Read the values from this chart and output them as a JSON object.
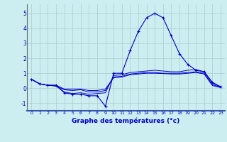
{
  "xlabel": "Graphe des températures (°c)",
  "bg_color": "#cceef0",
  "grid_color": "#aacccc",
  "line_color": "#0000cc",
  "xlim": [
    -0.5,
    23.5
  ],
  "ylim": [
    -1.5,
    5.6
  ],
  "yticks": [
    -1,
    0,
    1,
    2,
    3,
    4,
    5
  ],
  "xticks": [
    0,
    1,
    2,
    3,
    4,
    5,
    6,
    7,
    8,
    9,
    10,
    11,
    12,
    13,
    14,
    15,
    16,
    17,
    18,
    19,
    20,
    21,
    22,
    23
  ],
  "series": [
    {
      "x": [
        0,
        1,
        2,
        3,
        4,
        5,
        6,
        7,
        8,
        9,
        10,
        11,
        12,
        13,
        14,
        15,
        16,
        17,
        18,
        19,
        20,
        21,
        22,
        23
      ],
      "y": [
        0.6,
        0.3,
        0.2,
        0.2,
        -0.3,
        -0.4,
        -0.4,
        -0.5,
        -0.5,
        -1.2,
        1.0,
        1.0,
        2.5,
        3.8,
        4.7,
        5.0,
        4.7,
        3.5,
        2.3,
        1.6,
        1.2,
        1.1,
        0.4,
        0.1
      ],
      "marker": true
    },
    {
      "x": [
        0,
        1,
        2,
        3,
        4,
        5,
        6,
        7,
        8,
        9,
        10,
        11,
        12,
        13,
        14,
        15,
        16,
        17,
        18,
        19,
        20,
        21,
        22,
        23
      ],
      "y": [
        0.6,
        0.3,
        0.2,
        0.15,
        -0.25,
        -0.35,
        -0.3,
        -0.4,
        -0.35,
        -0.3,
        0.85,
        0.9,
        1.05,
        1.1,
        1.15,
        1.2,
        1.15,
        1.1,
        1.1,
        1.2,
        1.25,
        1.1,
        0.35,
        0.07
      ],
      "marker": false
    },
    {
      "x": [
        0,
        1,
        2,
        3,
        4,
        5,
        6,
        7,
        8,
        9,
        10,
        11,
        12,
        13,
        14,
        15,
        16,
        17,
        18,
        19,
        20,
        21,
        22,
        23
      ],
      "y": [
        0.6,
        0.3,
        0.2,
        0.15,
        -0.1,
        -0.15,
        -0.1,
        -0.25,
        -0.25,
        -0.15,
        0.75,
        0.8,
        0.95,
        1.0,
        1.05,
        1.05,
        1.0,
        1.0,
        1.0,
        1.05,
        1.1,
        1.0,
        0.25,
        0.05
      ],
      "marker": false
    },
    {
      "x": [
        0,
        1,
        2,
        3,
        4,
        5,
        6,
        7,
        8,
        9,
        10,
        11,
        12,
        13,
        14,
        15,
        16,
        17,
        18,
        19,
        20,
        21,
        22,
        23
      ],
      "y": [
        0.6,
        0.3,
        0.2,
        0.2,
        -0.05,
        -0.05,
        -0.05,
        -0.15,
        -0.15,
        -0.05,
        0.7,
        0.75,
        0.9,
        0.95,
        1.0,
        1.0,
        0.98,
        0.95,
        0.95,
        1.0,
        1.05,
        0.95,
        0.18,
        0.05
      ],
      "marker": false
    }
  ]
}
